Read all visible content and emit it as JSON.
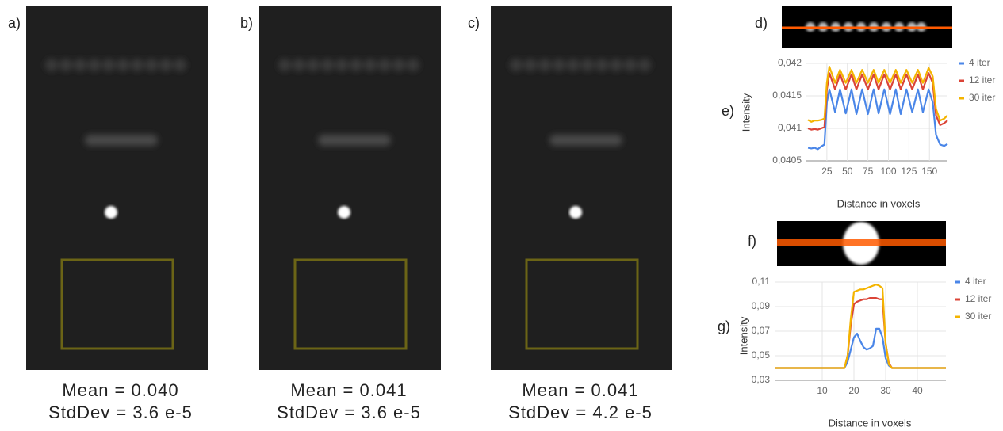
{
  "panels": [
    {
      "label": "a)",
      "mean": "Mean = 0.040",
      "stddev": "StdDev = 3.6 e-5"
    },
    {
      "label": "b)",
      "mean": "Mean = 0.041",
      "stddev": "StdDev = 3.6 e-5"
    },
    {
      "label": "c)",
      "mean": "Mean = 0.041",
      "stddev": "StdDev = 4.2 e-5"
    }
  ],
  "images": [
    {
      "label": "d)"
    },
    {
      "label": "f)"
    }
  ],
  "chart_data": [
    {
      "type": "line",
      "label": "e)",
      "x_label": "Distance in voxels",
      "y_label": "Intensity",
      "x": [
        2,
        6,
        10,
        14,
        18,
        22,
        25,
        28,
        35,
        41,
        48,
        55,
        61,
        68,
        75,
        82,
        88,
        95,
        102,
        109,
        115,
        122,
        129,
        136,
        142,
        149,
        154,
        158,
        163,
        168,
        172
      ],
      "series": [
        {
          "name": "4 iter",
          "color": "#4a86e8",
          "values": [
            0.0407,
            0.04069,
            0.0407,
            0.04068,
            0.04072,
            0.04075,
            0.0414,
            0.0416,
            0.04125,
            0.0416,
            0.04123,
            0.0416,
            0.04122,
            0.0416,
            0.04122,
            0.0416,
            0.04123,
            0.0416,
            0.04122,
            0.0416,
            0.04122,
            0.0416,
            0.04125,
            0.0416,
            0.04125,
            0.0416,
            0.0414,
            0.0409,
            0.04075,
            0.04073,
            0.04076
          ]
        },
        {
          "name": "12 iter",
          "color": "#db4437",
          "values": [
            0.041,
            0.04098,
            0.04099,
            0.04098,
            0.041,
            0.04102,
            0.0416,
            0.04185,
            0.0416,
            0.04183,
            0.0416,
            0.04183,
            0.0416,
            0.04183,
            0.0416,
            0.04183,
            0.0416,
            0.04183,
            0.0416,
            0.04183,
            0.0416,
            0.04183,
            0.0416,
            0.04183,
            0.0416,
            0.04185,
            0.0417,
            0.0412,
            0.04105,
            0.04108,
            0.04112
          ]
        },
        {
          "name": "30 iter",
          "color": "#f4b400",
          "values": [
            0.04113,
            0.0411,
            0.04112,
            0.04112,
            0.04113,
            0.04115,
            0.0417,
            0.04195,
            0.0417,
            0.0419,
            0.0417,
            0.0419,
            0.0417,
            0.0419,
            0.0417,
            0.0419,
            0.0417,
            0.0419,
            0.0417,
            0.0419,
            0.0417,
            0.0419,
            0.0417,
            0.0419,
            0.0417,
            0.04193,
            0.0418,
            0.0413,
            0.04112,
            0.04115,
            0.0412
          ]
        }
      ],
      "xlim": [
        0,
        172
      ],
      "xticks": [
        25,
        50,
        75,
        100,
        125,
        150
      ],
      "ylim": [
        0.0405,
        0.042
      ],
      "yticks": [
        {
          "value": 0.0405,
          "label": "0,0405"
        },
        {
          "value": 0.041,
          "label": "0,041"
        },
        {
          "value": 0.0415,
          "label": "0,0415"
        },
        {
          "value": 0.042,
          "label": "0,042"
        }
      ],
      "grid": true,
      "legend": "right"
    },
    {
      "type": "line",
      "label": "g)",
      "x_label": "Distance in voxels",
      "y_label": "Intensity",
      "x": [
        -5,
        0,
        5,
        10,
        15,
        17,
        18,
        19,
        20,
        21,
        22,
        23,
        24,
        25,
        26,
        27,
        28,
        29,
        30,
        31,
        32,
        35,
        40,
        45,
        49
      ],
      "series": [
        {
          "name": "4 iter",
          "color": "#4a86e8",
          "values": [
            0.04,
            0.04,
            0.04,
            0.04,
            0.04,
            0.04,
            0.045,
            0.055,
            0.065,
            0.068,
            0.062,
            0.057,
            0.055,
            0.056,
            0.058,
            0.072,
            0.072,
            0.065,
            0.048,
            0.042,
            0.04,
            0.04,
            0.04,
            0.04,
            0.04
          ]
        },
        {
          "name": "12 iter",
          "color": "#db4437",
          "values": [
            0.04,
            0.04,
            0.04,
            0.04,
            0.04,
            0.04,
            0.05,
            0.075,
            0.092,
            0.094,
            0.095,
            0.096,
            0.096,
            0.097,
            0.097,
            0.097,
            0.096,
            0.096,
            0.06,
            0.044,
            0.04,
            0.04,
            0.04,
            0.04,
            0.04
          ]
        },
        {
          "name": "30 iter",
          "color": "#f4b400",
          "values": [
            0.04,
            0.04,
            0.04,
            0.04,
            0.04,
            0.04,
            0.05,
            0.08,
            0.102,
            0.103,
            0.104,
            0.104,
            0.105,
            0.106,
            0.107,
            0.108,
            0.107,
            0.105,
            0.06,
            0.043,
            0.04,
            0.04,
            0.04,
            0.04,
            0.04
          ]
        }
      ],
      "xlim": [
        -5,
        49
      ],
      "xticks": [
        10,
        20,
        30,
        40
      ],
      "ylim": [
        0.03,
        0.11
      ],
      "yticks": [
        {
          "value": 0.03,
          "label": "0,03"
        },
        {
          "value": 0.05,
          "label": "0,05"
        },
        {
          "value": 0.07,
          "label": "0,07"
        },
        {
          "value": 0.09,
          "label": "0,09"
        },
        {
          "value": 0.11,
          "label": "0,11"
        }
      ],
      "grid": true,
      "legend": "right"
    }
  ]
}
